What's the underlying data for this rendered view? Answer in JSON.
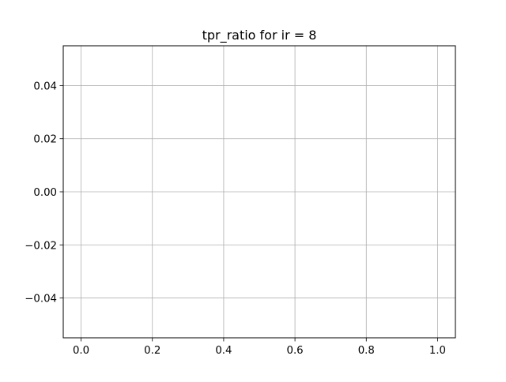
{
  "chart_data": {
    "type": "line",
    "title": "tpr_ratio for ir = 8",
    "xlabel": "",
    "ylabel": "",
    "series": [],
    "xlim": [
      -0.05,
      1.05
    ],
    "ylim": [
      -0.055,
      0.055
    ],
    "x_ticks": [
      0.0,
      0.2,
      0.4,
      0.6,
      0.8,
      1.0
    ],
    "x_tick_labels": [
      "0.0",
      "0.2",
      "0.4",
      "0.6",
      "0.8",
      "1.0"
    ],
    "y_ticks": [
      -0.04,
      -0.02,
      0.0,
      0.02,
      0.04
    ],
    "y_tick_labels": [
      "−0.04",
      "−0.02",
      "0.00",
      "0.02",
      "0.04"
    ],
    "grid": true,
    "legend": "none",
    "colors": {
      "grid": "#b0b0b0",
      "axes": "#000000",
      "background": "#ffffff"
    }
  }
}
